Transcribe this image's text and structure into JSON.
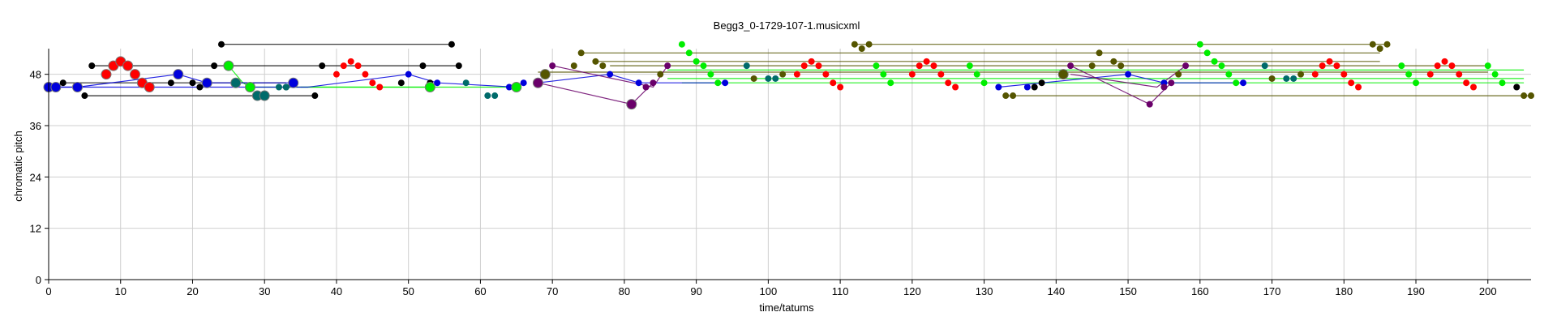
{
  "chart_data": {
    "type": "scatter",
    "title": "Begg3_0-1729-107-1.musicxml",
    "xlabel": "time/tatums",
    "ylabel": "chromatic pitch",
    "xlim": [
      0,
      206
    ],
    "ylim": [
      0,
      54
    ],
    "xticks": [
      0,
      10,
      20,
      30,
      40,
      50,
      60,
      70,
      80,
      90,
      100,
      110,
      120,
      130,
      140,
      150,
      160,
      170,
      180,
      190,
      200
    ],
    "yticks": [
      0,
      12,
      24,
      36,
      48
    ],
    "grid": true,
    "colors": {
      "red": "#ff0000",
      "blue": "#0000dd",
      "black": "#000000",
      "green": "#00ee00",
      "teal": "#006b6b",
      "olive": "#555500",
      "purple": "#6a006a"
    },
    "lines": [
      {
        "color": "olive",
        "points": [
          [
            74,
            53
          ],
          [
            185,
            53
          ]
        ]
      },
      {
        "color": "olive",
        "points": [
          [
            76,
            51
          ],
          [
            185,
            51
          ]
        ]
      },
      {
        "color": "olive",
        "points": [
          [
            78,
            50
          ],
          [
            200,
            50
          ]
        ]
      },
      {
        "color": "olive",
        "points": [
          [
            68,
            48.5
          ],
          [
            200,
            48.5
          ]
        ]
      },
      {
        "color": "olive",
        "points": [
          [
            133,
            43
          ],
          [
            206,
            43
          ]
        ]
      },
      {
        "color": "olive",
        "points": [
          [
            112,
            55
          ],
          [
            186,
            55
          ]
        ]
      },
      {
        "color": "green",
        "points": [
          [
            86,
            49
          ],
          [
            205,
            49
          ]
        ]
      },
      {
        "color": "green",
        "points": [
          [
            86,
            47
          ],
          [
            205,
            47
          ]
        ]
      },
      {
        "color": "green",
        "points": [
          [
            88,
            46
          ],
          [
            205,
            46
          ]
        ]
      },
      {
        "color": "green",
        "points": [
          [
            25,
            50
          ],
          [
            27,
            46
          ],
          [
            28,
            45
          ],
          [
            53,
            45
          ]
        ]
      },
      {
        "color": "green",
        "points": [
          [
            35,
            45
          ],
          [
            65,
            45
          ]
        ]
      },
      {
        "color": "black",
        "points": [
          [
            24,
            55
          ],
          [
            56,
            55
          ]
        ]
      },
      {
        "color": "black",
        "points": [
          [
            6,
            50
          ],
          [
            57,
            50
          ]
        ]
      },
      {
        "color": "black",
        "points": [
          [
            5,
            43
          ],
          [
            37,
            43
          ]
        ]
      },
      {
        "color": "black",
        "points": [
          [
            2,
            46
          ],
          [
            33,
            46
          ]
        ]
      },
      {
        "color": "blue",
        "points": [
          [
            0,
            45
          ],
          [
            4,
            45
          ],
          [
            18,
            48
          ],
          [
            22,
            46
          ],
          [
            34,
            46
          ]
        ]
      },
      {
        "color": "blue",
        "points": [
          [
            0,
            45
          ],
          [
            36,
            45
          ],
          [
            50,
            48
          ],
          [
            54,
            46
          ],
          [
            65,
            45
          ]
        ]
      },
      {
        "color": "blue",
        "points": [
          [
            68,
            46
          ],
          [
            78,
            48
          ],
          [
            82,
            46
          ],
          [
            94,
            46
          ]
        ]
      },
      {
        "color": "blue",
        "points": [
          [
            132,
            45
          ],
          [
            150,
            48
          ],
          [
            155,
            46
          ],
          [
            166,
            46
          ]
        ]
      },
      {
        "color": "purple",
        "points": [
          [
            68,
            46
          ],
          [
            81,
            41
          ],
          [
            84,
            46
          ]
        ]
      },
      {
        "color": "purple",
        "points": [
          [
            70,
            50
          ],
          [
            84,
            45
          ],
          [
            86,
            50
          ]
        ]
      },
      {
        "color": "purple",
        "points": [
          [
            142,
            50
          ],
          [
            153,
            41
          ],
          [
            156,
            46
          ]
        ]
      },
      {
        "color": "purple",
        "points": [
          [
            142,
            48
          ],
          [
            154,
            45
          ],
          [
            158,
            50
          ]
        ]
      }
    ],
    "series": [
      {
        "color": "red",
        "size": "large",
        "points": [
          [
            8,
            48
          ],
          [
            9,
            50
          ],
          [
            10,
            51
          ],
          [
            11,
            50
          ],
          [
            12,
            48
          ],
          [
            13,
            46
          ],
          [
            14,
            45
          ]
        ]
      },
      {
        "color": "red",
        "size": "small",
        "points": [
          [
            40,
            48
          ],
          [
            41,
            50
          ],
          [
            42,
            51
          ],
          [
            43,
            50
          ],
          [
            44,
            48
          ],
          [
            45,
            46
          ],
          [
            46,
            45
          ],
          [
            104,
            48
          ],
          [
            105,
            50
          ],
          [
            106,
            51
          ],
          [
            107,
            50
          ],
          [
            108,
            48
          ],
          [
            109,
            46
          ],
          [
            110,
            45
          ],
          [
            120,
            48
          ],
          [
            121,
            50
          ],
          [
            122,
            51
          ],
          [
            123,
            50
          ],
          [
            124,
            48
          ],
          [
            125,
            46
          ],
          [
            126,
            45
          ],
          [
            176,
            48
          ],
          [
            177,
            50
          ],
          [
            178,
            51
          ],
          [
            179,
            50
          ],
          [
            180,
            48
          ],
          [
            181,
            46
          ],
          [
            182,
            45
          ],
          [
            192,
            48
          ],
          [
            193,
            50
          ],
          [
            194,
            51
          ],
          [
            195,
            50
          ],
          [
            196,
            48
          ],
          [
            197,
            46
          ],
          [
            198,
            45
          ]
        ]
      },
      {
        "color": "blue",
        "size": "large",
        "points": [
          [
            0,
            45
          ],
          [
            1,
            45
          ],
          [
            4,
            45
          ],
          [
            18,
            48
          ],
          [
            22,
            46
          ],
          [
            34,
            46
          ]
        ]
      },
      {
        "color": "blue",
        "size": "small",
        "points": [
          [
            50,
            48
          ],
          [
            54,
            46
          ],
          [
            64,
            45
          ],
          [
            66,
            46
          ],
          [
            78,
            48
          ],
          [
            82,
            46
          ],
          [
            94,
            46
          ],
          [
            132,
            45
          ],
          [
            136,
            45
          ],
          [
            150,
            48
          ],
          [
            155,
            46
          ],
          [
            166,
            46
          ]
        ]
      },
      {
        "color": "black",
        "size": "small",
        "points": [
          [
            2,
            46
          ],
          [
            5,
            43
          ],
          [
            6,
            50
          ],
          [
            17,
            46
          ],
          [
            20,
            46
          ],
          [
            21,
            45
          ],
          [
            23,
            50
          ],
          [
            24,
            55
          ],
          [
            33,
            45
          ],
          [
            37,
            43
          ],
          [
            38,
            50
          ],
          [
            49,
            46
          ],
          [
            52,
            50
          ],
          [
            53,
            46
          ],
          [
            56,
            55
          ],
          [
            57,
            50
          ],
          [
            137,
            45
          ],
          [
            138,
            46
          ],
          [
            204,
            45
          ]
        ]
      },
      {
        "color": "green",
        "size": "large",
        "points": [
          [
            25,
            50
          ],
          [
            28,
            45
          ],
          [
            53,
            45
          ],
          [
            65,
            45
          ]
        ]
      },
      {
        "color": "green",
        "size": "small",
        "points": [
          [
            88,
            55
          ],
          [
            89,
            53
          ],
          [
            90,
            51
          ],
          [
            91,
            50
          ],
          [
            92,
            48
          ],
          [
            93,
            46
          ],
          [
            115,
            50
          ],
          [
            116,
            48
          ],
          [
            117,
            46
          ],
          [
            128,
            50
          ],
          [
            129,
            48
          ],
          [
            130,
            46
          ],
          [
            160,
            55
          ],
          [
            161,
            53
          ],
          [
            162,
            51
          ],
          [
            163,
            50
          ],
          [
            164,
            48
          ],
          [
            165,
            46
          ],
          [
            188,
            50
          ],
          [
            189,
            48
          ],
          [
            190,
            46
          ],
          [
            200,
            50
          ],
          [
            201,
            48
          ],
          [
            202,
            46
          ]
        ]
      },
      {
        "color": "teal",
        "size": "large",
        "points": [
          [
            26,
            46
          ],
          [
            29,
            43
          ],
          [
            30,
            43
          ]
        ]
      },
      {
        "color": "teal",
        "size": "small",
        "points": [
          [
            32,
            45
          ],
          [
            33,
            45
          ],
          [
            58,
            46
          ],
          [
            61,
            43
          ],
          [
            62,
            43
          ],
          [
            97,
            50
          ],
          [
            100,
            47
          ],
          [
            101,
            47
          ],
          [
            169,
            50
          ],
          [
            172,
            47
          ],
          [
            173,
            47
          ]
        ]
      },
      {
        "color": "olive",
        "size": "large",
        "points": [
          [
            69,
            48
          ],
          [
            141,
            48
          ]
        ]
      },
      {
        "color": "olive",
        "size": "small",
        "points": [
          [
            73,
            50
          ],
          [
            74,
            53
          ],
          [
            76,
            51
          ],
          [
            77,
            50
          ],
          [
            85,
            48
          ],
          [
            98,
            47
          ],
          [
            102,
            48
          ],
          [
            112,
            55
          ],
          [
            113,
            54
          ],
          [
            114,
            55
          ],
          [
            133,
            43
          ],
          [
            134,
            43
          ],
          [
            145,
            50
          ],
          [
            146,
            53
          ],
          [
            148,
            51
          ],
          [
            149,
            50
          ],
          [
            157,
            48
          ],
          [
            170,
            47
          ],
          [
            174,
            48
          ],
          [
            184,
            55
          ],
          [
            185,
            54
          ],
          [
            186,
            55
          ],
          [
            205,
            43
          ],
          [
            206,
            43
          ]
        ]
      },
      {
        "color": "purple",
        "size": "large",
        "points": [
          [
            68,
            46
          ],
          [
            81,
            41
          ]
        ]
      },
      {
        "color": "purple",
        "size": "small",
        "points": [
          [
            70,
            50
          ],
          [
            83,
            45
          ],
          [
            84,
            46
          ],
          [
            86,
            50
          ],
          [
            142,
            50
          ],
          [
            153,
            41
          ],
          [
            155,
            45
          ],
          [
            156,
            46
          ],
          [
            158,
            50
          ]
        ]
      }
    ]
  }
}
